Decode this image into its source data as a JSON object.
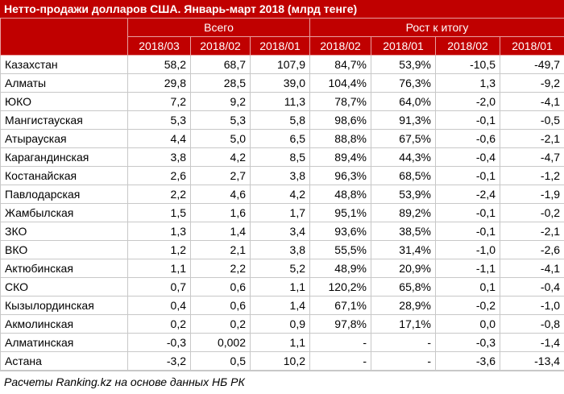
{
  "title": "Нетто-продажи долларов США. Январь-март 2018 (млрд тенге)",
  "table": {
    "groups": [
      "Всего",
      "Рост к итогу"
    ],
    "columns": [
      "2018/03",
      "2018/02",
      "2018/01",
      "2018/02",
      "2018/01",
      "2018/02",
      "2018/01"
    ],
    "rows": [
      [
        "Казахстан",
        "58,2",
        "68,7",
        "107,9",
        "84,7%",
        "53,9%",
        "-10,5",
        "-49,7"
      ],
      [
        "Алматы",
        "29,8",
        "28,5",
        "39,0",
        "104,4%",
        "76,3%",
        "1,3",
        "-9,2"
      ],
      [
        "ЮКО",
        "7,2",
        "9,2",
        "11,3",
        "78,7%",
        "64,0%",
        "-2,0",
        "-4,1"
      ],
      [
        "Мангистауская",
        "5,3",
        "5,3",
        "5,8",
        "98,6%",
        "91,3%",
        "-0,1",
        "-0,5"
      ],
      [
        "Атырауская",
        "4,4",
        "5,0",
        "6,5",
        "88,8%",
        "67,5%",
        "-0,6",
        "-2,1"
      ],
      [
        "Карагандинская",
        "3,8",
        "4,2",
        "8,5",
        "89,4%",
        "44,3%",
        "-0,4",
        "-4,7"
      ],
      [
        "Костанайская",
        "2,6",
        "2,7",
        "3,8",
        "96,3%",
        "68,5%",
        "-0,1",
        "-1,2"
      ],
      [
        "Павлодарская",
        "2,2",
        "4,6",
        "4,2",
        "48,8%",
        "53,9%",
        "-2,4",
        "-1,9"
      ],
      [
        "Жамбылская",
        "1,5",
        "1,6",
        "1,7",
        "95,1%",
        "89,2%",
        "-0,1",
        "-0,2"
      ],
      [
        "ЗКО",
        "1,3",
        "1,4",
        "3,4",
        "93,6%",
        "38,5%",
        "-0,1",
        "-2,1"
      ],
      [
        "ВКО",
        "1,2",
        "2,1",
        "3,8",
        "55,5%",
        "31,4%",
        "-1,0",
        "-2,6"
      ],
      [
        "Актюбинская",
        "1,1",
        "2,2",
        "5,2",
        "48,9%",
        "20,9%",
        "-1,1",
        "-4,1"
      ],
      [
        "СКО",
        "0,7",
        "0,6",
        "1,1",
        "120,2%",
        "65,8%",
        "0,1",
        "-0,4"
      ],
      [
        "Кызылординская",
        "0,4",
        "0,6",
        "1,4",
        "67,1%",
        "28,9%",
        "-0,2",
        "-1,0"
      ],
      [
        "Акмолинская",
        "0,2",
        "0,2",
        "0,9",
        "97,8%",
        "17,1%",
        "0,0",
        "-0,8"
      ],
      [
        "Алматинская",
        "-0,3",
        "0,002",
        "1,1",
        "-",
        "-",
        "-0,3",
        "-1,4"
      ],
      [
        "Астана",
        "-3,2",
        "0,5",
        "10,2",
        "-",
        "-",
        "-3,6",
        "-13,4"
      ]
    ]
  },
  "footer": "Расчеты Ranking.kz на основе данных НБ РК"
}
